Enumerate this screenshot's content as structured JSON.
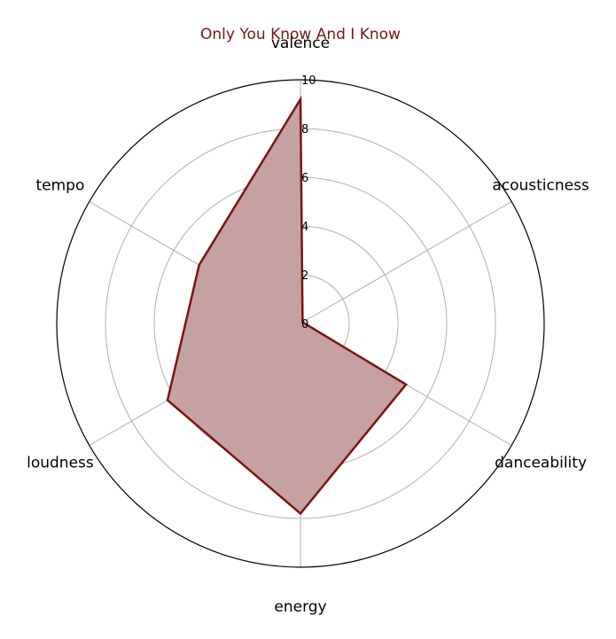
{
  "chart_data": {
    "type": "radar",
    "title": "Only You Know And I Know",
    "axes": [
      "valence",
      "acousticness",
      "danceability",
      "energy",
      "loudness",
      "tempo"
    ],
    "series": [
      {
        "values": [
          9.2,
          0.1,
          5.0,
          7.8,
          6.3,
          4.8
        ]
      }
    ],
    "rlim": [
      0,
      10
    ],
    "rticks": [
      "0",
      "2",
      "4",
      "6",
      "8",
      "10"
    ],
    "grid": true,
    "colors": {
      "line": "#7a1515",
      "fill": "#c6a1a1",
      "title": "#7a1515",
      "grid": "#b0b0b0",
      "outer": "#000000"
    }
  }
}
